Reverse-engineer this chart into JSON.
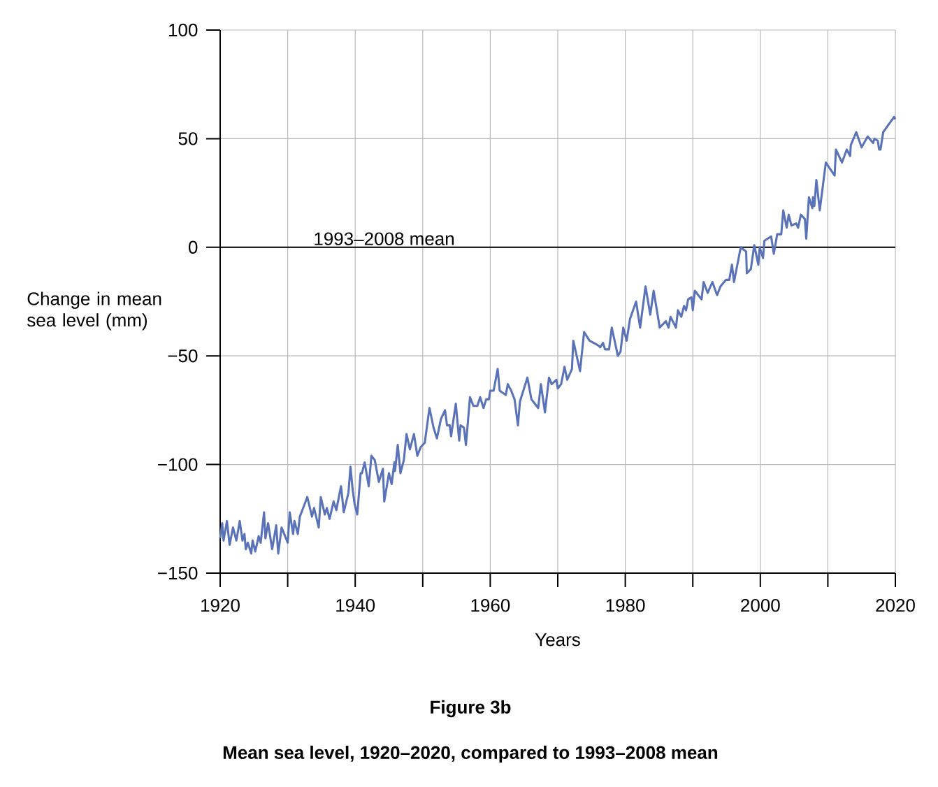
{
  "chart_data": {
    "type": "line",
    "title": "Figure 3b",
    "subtitle": "Mean sea level, 1920–2020, compared to 1993–2008 mean",
    "xlabel": "Years",
    "ylabel": "Change in mean sea level (mm)",
    "xlim": [
      1920,
      2020
    ],
    "ylim": [
      -150,
      100
    ],
    "xticks": [
      1920,
      {
        "value": 1930,
        "label": null
      },
      1940,
      {
        "value": 1950,
        "label": null
      },
      1960,
      {
        "value": 1970,
        "label": null
      },
      1980,
      {
        "value": 1990,
        "label": null
      },
      2000,
      {
        "value": 2010,
        "label": null
      },
      2020
    ],
    "yticks": [
      {
        "value": -150,
        "label": "−150"
      },
      {
        "value": -100,
        "label": "−100"
      },
      {
        "value": -50,
        "label": "−50"
      },
      0,
      50,
      100
    ],
    "grid": true,
    "ref_lines": [
      {
        "axis": "y",
        "value": 0,
        "label": "1993–2008 mean",
        "color": "#000000"
      }
    ],
    "series": [
      {
        "color": "#5a73b8",
        "x": [
          1920.0,
          1920.3,
          1920.5,
          1921.0,
          1921.4,
          1921.9,
          1922.4,
          1922.9,
          1923.3,
          1923.6,
          1923.8,
          1924.1,
          1924.6,
          1924.8,
          1925.2,
          1925.7,
          1926.0,
          1926.5,
          1926.7,
          1927.1,
          1927.7,
          1928.3,
          1928.6,
          1929.1,
          1930.0,
          1930.3,
          1930.8,
          1931.0,
          1931.5,
          1931.8,
          1932.9,
          1933.6,
          1933.9,
          1934.6,
          1934.9,
          1935.5,
          1935.8,
          1936.2,
          1936.8,
          1937.2,
          1937.9,
          1938.3,
          1939.0,
          1939.3,
          1939.6,
          1939.9,
          1940.3,
          1940.8,
          1941.0,
          1941.4,
          1942.0,
          1942.4,
          1942.9,
          1943.5,
          1944.1,
          1944.3,
          1945.0,
          1945.4,
          1945.8,
          1945.9,
          1946.3,
          1946.7,
          1947.2,
          1947.6,
          1948.1,
          1948.7,
          1949.2,
          1949.7,
          1950.3,
          1951.0,
          1951.6,
          1952.1,
          1952.7,
          1953.3,
          1953.6,
          1954.0,
          1954.2,
          1954.9,
          1955.4,
          1955.6,
          1956.1,
          1956.4,
          1957.0,
          1957.5,
          1958.1,
          1958.5,
          1959.0,
          1959.4,
          1959.8,
          1960.0,
          1960.5,
          1961.1,
          1961.4,
          1962.3,
          1962.6,
          1963.1,
          1963.6,
          1964.1,
          1964.4,
          1965.5,
          1966.1,
          1967.1,
          1967.5,
          1968.1,
          1968.7,
          1969.1,
          1969.8,
          1970.0,
          1970.5,
          1971.0,
          1971.4,
          1972.1,
          1972.3,
          1973.3,
          1973.9,
          1974.7,
          1975.9,
          1976.3,
          1976.7,
          1977.0,
          1977.6,
          1978.0,
          1978.9,
          1979.3,
          1979.7,
          1980.2,
          1980.7,
          1981.6,
          1982.2,
          1983.0,
          1983.7,
          1984.2,
          1985.1,
          1986.0,
          1986.4,
          1986.7,
          1987.5,
          1987.8,
          1988.3,
          1988.7,
          1989.0,
          1989.3,
          1989.8,
          1990.0,
          1990.3,
          1991.3,
          1991.6,
          1992.2,
          1992.9,
          1993.6,
          1994.1,
          1994.9,
          1995.4,
          1995.8,
          1996.1,
          1997.1,
          1997.9,
          1998.0,
          1998.6,
          1999.1,
          1999.7,
          1999.9,
          2000.4,
          2000.6,
          2001.6,
          2002.0,
          2002.5,
          2003.1,
          2003.4,
          2003.9,
          2004.2,
          2004.6,
          2005.3,
          2005.6,
          2006.0,
          2006.6,
          2006.8,
          2007.2,
          2007.7,
          2007.8,
          2008.0,
          2008.3,
          2008.8,
          2009.7,
          2011.0,
          2011.2,
          2012.1,
          2012.8,
          2013.3,
          2013.4,
          2014.2,
          2015.0,
          2015.9,
          2016.7,
          2016.9,
          2017.4,
          2017.6,
          2017.8,
          2018.2,
          2019.8,
          2020.0
        ],
        "values": [
          -134,
          -127,
          -135,
          -126,
          -137,
          -129,
          -135,
          -126,
          -135,
          -132,
          -139,
          -136,
          -141,
          -135,
          -140,
          -133,
          -136,
          -122,
          -134,
          -127,
          -139,
          -128,
          -141,
          -129,
          -136,
          -122,
          -132,
          -126,
          -132,
          -124,
          -115,
          -124,
          -120,
          -129,
          -115,
          -123,
          -120,
          -125,
          -117,
          -121,
          -110,
          -122,
          -113,
          -101,
          -111,
          -118,
          -123,
          -104,
          -104,
          -99,
          -110,
          -96,
          -98,
          -108,
          -102,
          -117,
          -104,
          -109,
          -99,
          -103,
          -91,
          -104,
          -98,
          -86,
          -93,
          -86,
          -96,
          -92,
          -90,
          -74,
          -83,
          -88,
          -79,
          -75,
          -82,
          -82,
          -87,
          -72,
          -89,
          -82,
          -83,
          -91,
          -69,
          -73,
          -73,
          -69,
          -74,
          -70,
          -70,
          -66,
          -66,
          -56,
          -66,
          -68,
          -63,
          -66,
          -70,
          -82,
          -71,
          -60,
          -70,
          -74,
          -63,
          -76,
          -60,
          -63,
          -61,
          -65,
          -63,
          -55,
          -61,
          -56,
          -43,
          -57,
          -39,
          -43,
          -45,
          -46,
          -44,
          -47,
          -47,
          -37,
          -50,
          -48,
          -37,
          -43,
          -33,
          -25,
          -37,
          -18,
          -31,
          -20,
          -37,
          -34,
          -37,
          -32,
          -37,
          -29,
          -32,
          -27,
          -29,
          -24,
          -23,
          -29,
          -20,
          -24,
          -16,
          -21,
          -16,
          -22,
          -18,
          -15,
          -15,
          -8,
          -16,
          0,
          -2,
          -12,
          -10,
          1,
          -8,
          0,
          -5,
          3,
          5,
          -3,
          6,
          6,
          17,
          9,
          15,
          10,
          11,
          9,
          15,
          13,
          4,
          23,
          18,
          23,
          19,
          31,
          17,
          39,
          33,
          45,
          39,
          45,
          42,
          47,
          53,
          46,
          51,
          48,
          50,
          49,
          45,
          45,
          53,
          60,
          59
        ]
      }
    ]
  }
}
